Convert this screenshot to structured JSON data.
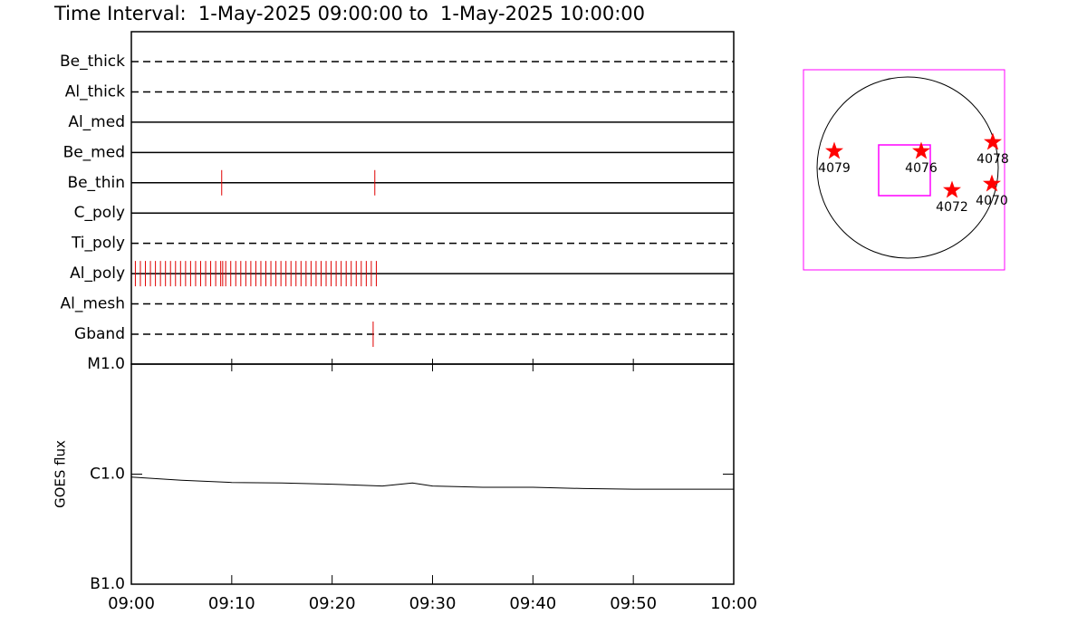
{
  "chart_data": [
    {
      "type": "event",
      "title": "Time Interval:  1-May-2025 09:00:00 to  1-May-2025 10:00:00",
      "xlim": [
        "09:00",
        "10:00"
      ],
      "color": "#e00000",
      "rows": [
        {
          "name": "Be_thick",
          "style": "dashed",
          "events": []
        },
        {
          "name": "Al_thick",
          "style": "dashed",
          "events": []
        },
        {
          "name": "Al_med",
          "style": "solid",
          "events": []
        },
        {
          "name": "Be_med",
          "style": "solid",
          "events": []
        },
        {
          "name": "Be_thin",
          "style": "solid",
          "events": [
            "09:09:00",
            "09:24:15"
          ]
        },
        {
          "name": "C_poly",
          "style": "solid",
          "events": []
        },
        {
          "name": "Ti_poly",
          "style": "dashed",
          "events": []
        },
        {
          "name": "Al_poly",
          "style": "solid",
          "events": [
            "09:00:24",
            "09:00:54",
            "09:01:24",
            "09:01:54",
            "09:02:24",
            "09:02:54",
            "09:03:24",
            "09:03:54",
            "09:04:24",
            "09:04:54",
            "09:05:24",
            "09:05:54",
            "09:06:24",
            "09:06:54",
            "09:07:24",
            "09:07:54",
            "09:08:24",
            "09:08:54",
            "09:09:06",
            "09:09:24",
            "09:09:54",
            "09:10:24",
            "09:10:54",
            "09:11:24",
            "09:11:54",
            "09:12:24",
            "09:12:54",
            "09:13:24",
            "09:13:54",
            "09:14:24",
            "09:14:54",
            "09:15:24",
            "09:15:54",
            "09:16:24",
            "09:16:54",
            "09:17:24",
            "09:17:54",
            "09:18:24",
            "09:18:54",
            "09:19:24",
            "09:19:54",
            "09:20:24",
            "09:20:54",
            "09:21:24",
            "09:21:54",
            "09:22:24",
            "09:22:54",
            "09:23:24",
            "09:23:54",
            "09:24:24"
          ]
        },
        {
          "name": "Al_mesh",
          "style": "dashed",
          "events": []
        },
        {
          "name": "Gband",
          "style": "dashed",
          "events": [
            "09:24:05"
          ]
        }
      ]
    },
    {
      "type": "line",
      "ylabel": "GOES flux",
      "log": true,
      "color": "#000000",
      "x": [
        "09:00",
        "09:05",
        "09:10",
        "09:15",
        "09:20",
        "09:25",
        "09:28",
        "09:30",
        "09:35",
        "09:40",
        "09:45",
        "09:50",
        "09:55",
        "10:00"
      ],
      "values": [
        9.4e-07,
        8.8e-07,
        8.4e-07,
        8.3e-07,
        8.1e-07,
        7.8e-07,
        8.3e-07,
        7.8e-07,
        7.6e-07,
        7.6e-07,
        7.4e-07,
        7.3e-07,
        7.3e-07,
        7.3e-07
      ],
      "xlim": [
        "09:00",
        "10:00"
      ],
      "xticks": [
        "09:00",
        "09:10",
        "09:20",
        "09:30",
        "09:40",
        "09:50",
        "10:00"
      ],
      "ylim": [
        1e-07,
        1e-05
      ],
      "yticks": [
        {
          "value": 1e-07,
          "label": "B1.0"
        },
        {
          "value": 1e-06,
          "label": "C1.0"
        },
        {
          "value": 1e-05,
          "label": "M1.0"
        }
      ]
    },
    {
      "type": "map",
      "xlim": [
        -1.15,
        1.07
      ],
      "ylim": [
        -1.13,
        1.08
      ],
      "disk_radius": 1,
      "fov": {
        "xlim": [
          -0.32,
          0.25
        ],
        "ylim": [
          -0.31,
          0.25
        ]
      },
      "box_color": "#ff00ff",
      "marker_color": "#ff0000",
      "regions": [
        {
          "name": "4079",
          "x": -0.81,
          "y": 0.18
        },
        {
          "name": "4076",
          "x": 0.15,
          "y": 0.18
        },
        {
          "name": "4078",
          "x": 0.94,
          "y": 0.28
        },
        {
          "name": "4072",
          "x": 0.49,
          "y": -0.25
        },
        {
          "name": "4070",
          "x": 0.93,
          "y": -0.18
        }
      ]
    }
  ]
}
